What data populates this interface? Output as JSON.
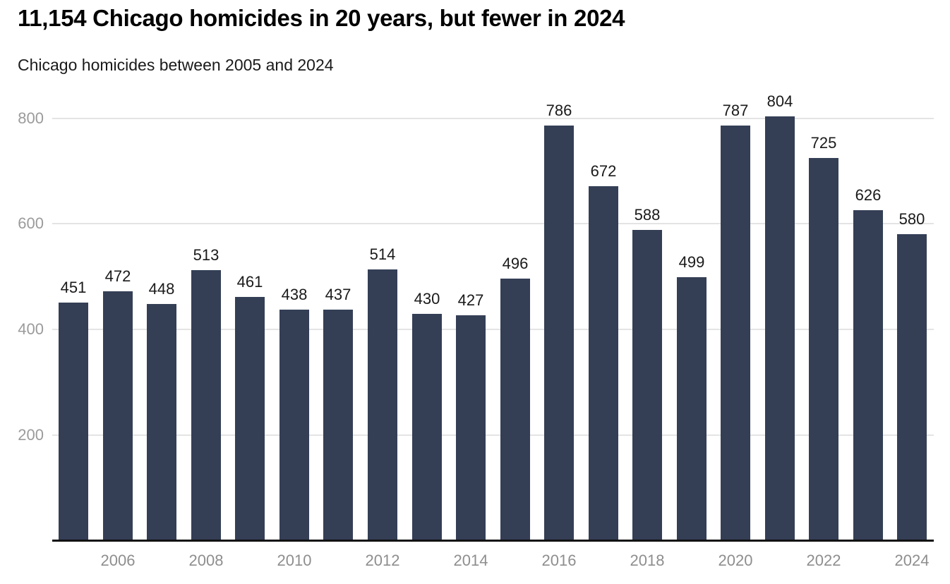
{
  "header": {
    "title": "11,154 Chicago homicides in 20 years, but fewer in 2024",
    "subtitle": "Chicago homicides between 2005 and 2024"
  },
  "chart_data": {
    "type": "bar",
    "title": "11,154 Chicago homicides in 20 years, but fewer in 2024",
    "subtitle": "Chicago homicides between 2005 and 2024",
    "categories": [
      2005,
      2006,
      2007,
      2008,
      2009,
      2010,
      2011,
      2012,
      2013,
      2014,
      2015,
      2016,
      2017,
      2018,
      2019,
      2020,
      2021,
      2022,
      2023,
      2024
    ],
    "values": [
      451,
      472,
      448,
      513,
      461,
      438,
      437,
      514,
      430,
      427,
      496,
      786,
      672,
      588,
      499,
      787,
      804,
      725,
      626,
      580
    ],
    "total": "11,154",
    "xlabel": "",
    "ylabel": "",
    "ylim": [
      0,
      800
    ],
    "y_ticks": [
      200,
      400,
      600,
      800
    ],
    "x_tick_labels": [
      "2006",
      "2008",
      "2010",
      "2012",
      "2014",
      "2016",
      "2018",
      "2020",
      "2022",
      "2024"
    ],
    "grid": true,
    "legend": "none",
    "data_labels": true
  },
  "colors": {
    "bar": "#343F56",
    "grid": "#e4e4e4",
    "axis": "#111111",
    "y_tick_text": "#9b9b9b",
    "x_tick_text": "#8e8e8e",
    "value_label": "#1a1a1a"
  }
}
